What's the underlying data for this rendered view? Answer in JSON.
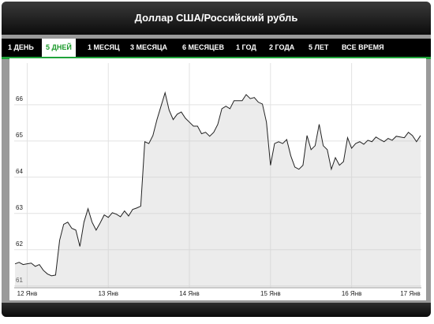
{
  "header": {
    "title": "Доллар США/Российский рубль"
  },
  "tabs": [
    "1 ДЕНЬ",
    "5 ДНЕЙ",
    "1 МЕСЯЦ",
    "3 МЕСЯЦА",
    "6 МЕСЯЦЕВ",
    "1 ГОД",
    "2 ГОДА",
    "5 ЛЕТ",
    "ВСЕ ВРЕМЯ"
  ],
  "active_tab": 1,
  "chart_data": {
    "type": "line",
    "x": [
      11.85,
      11.9,
      11.95,
      12.0,
      12.05,
      12.1,
      12.15,
      12.2,
      12.25,
      12.3,
      12.35,
      12.4,
      12.45,
      12.5,
      12.55,
      12.6,
      12.65,
      12.7,
      12.75,
      12.8,
      12.85,
      12.9,
      12.95,
      13.0,
      13.05,
      13.1,
      13.15,
      13.2,
      13.25,
      13.3,
      13.35,
      13.4,
      13.45,
      13.5,
      13.55,
      13.6,
      13.65,
      13.7,
      13.75,
      13.8,
      13.85,
      13.9,
      13.95,
      14.0,
      14.05,
      14.1,
      14.15,
      14.2,
      14.25,
      14.3,
      14.35,
      14.4,
      14.45,
      14.5,
      14.55,
      14.6,
      14.65,
      14.7,
      14.75,
      14.8,
      14.85,
      14.9,
      14.95,
      15.0,
      15.05,
      15.1,
      15.15,
      15.2,
      15.25,
      15.3,
      15.35,
      15.4,
      15.45,
      15.5,
      15.55,
      15.6,
      15.65,
      15.7,
      15.75,
      15.8,
      15.85,
      15.9,
      15.95,
      16.0,
      16.05,
      16.1,
      16.15,
      16.2,
      16.25,
      16.3,
      16.35,
      16.4,
      16.45,
      16.5,
      16.55,
      16.6,
      16.65,
      16.7,
      16.75,
      16.8,
      16.85
    ],
    "series": [
      {
        "color": "#222222",
        "values": [
          61.61,
          61.65,
          61.59,
          61.61,
          61.63,
          61.54,
          61.59,
          61.43,
          61.33,
          61.28,
          61.3,
          62.26,
          62.7,
          62.76,
          62.59,
          62.54,
          62.09,
          62.76,
          63.13,
          62.76,
          62.54,
          62.74,
          62.96,
          62.89,
          63.02,
          62.98,
          62.91,
          63.07,
          62.93,
          63.11,
          63.15,
          63.2,
          64.98,
          64.93,
          65.15,
          65.59,
          65.96,
          66.33,
          65.85,
          65.59,
          65.74,
          65.8,
          65.63,
          65.52,
          65.41,
          65.41,
          65.2,
          65.24,
          65.13,
          65.24,
          65.46,
          65.89,
          65.96,
          65.89,
          66.11,
          66.11,
          66.11,
          66.28,
          66.17,
          66.2,
          66.07,
          66.02,
          65.52,
          64.33,
          64.93,
          64.98,
          64.93,
          65.04,
          64.59,
          64.28,
          64.22,
          64.33,
          65.15,
          64.76,
          64.87,
          65.46,
          64.87,
          64.76,
          64.22,
          64.54,
          64.33,
          64.43,
          65.09,
          64.8,
          64.93,
          64.98,
          64.91,
          65.02,
          64.98,
          65.11,
          65.04,
          64.98,
          65.07,
          65.02,
          65.13,
          65.11,
          65.09,
          65.24,
          65.15,
          64.98,
          65.15
        ]
      }
    ],
    "xlim": [
      11.84,
      16.86
    ],
    "xticks": [
      {
        "value": 12,
        "label": "12 Янв"
      },
      {
        "value": 13,
        "label": "13 Янв"
      },
      {
        "value": 14,
        "label": "14 Янв"
      },
      {
        "value": 15,
        "label": "15 Янв"
      },
      {
        "value": 16,
        "label": "16 Янв"
      },
      {
        "value": 17,
        "label": "17 Янв"
      }
    ],
    "ylim": [
      60.95,
      67.15
    ],
    "yticks": [
      61,
      62,
      63,
      64,
      65,
      66
    ],
    "grid": true
  }
}
